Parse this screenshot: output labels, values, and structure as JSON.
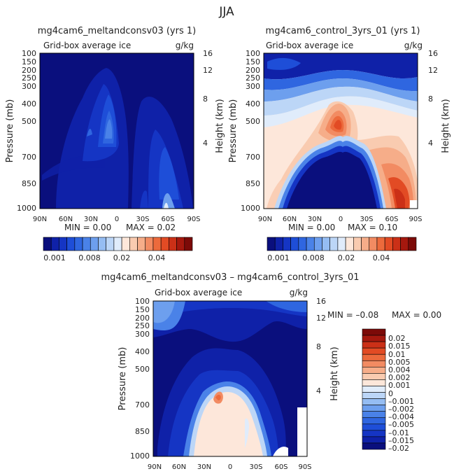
{
  "page_title": "JJA",
  "colors": {
    "blues": [
      "#0a0f7d",
      "#0f21a8",
      "#1535c4",
      "#1e4ed8",
      "#2f66e0",
      "#4a82e8",
      "#6d9fee",
      "#95bdf3",
      "#bcd6f7",
      "#e0ecfb"
    ],
    "reds": [
      "#fde7da",
      "#f9cbb0",
      "#f6ad89",
      "#f28b62",
      "#ec6a3c",
      "#e24b24",
      "#cb3017",
      "#a5180e",
      "#7c0a08"
    ]
  },
  "chart_data": [
    {
      "id": "panel_a",
      "type": "contour",
      "title": "mg4cam6_meltandconsv03 (yrs 1)",
      "left_label": "Grid-box average ice",
      "right_label": "g/kg",
      "ylabel": "Pressure (mb)",
      "ylabel_right": "Height (km)",
      "x_ticks": [
        "90N",
        "60N",
        "30N",
        "0",
        "30S",
        "60S",
        "90S"
      ],
      "y_ticks": [
        "100",
        "150",
        "200",
        "250",
        "300",
        "400",
        "500",
        "700",
        "850",
        "1000"
      ],
      "height_ticks": [
        "16",
        "12",
        "8",
        "4"
      ],
      "ylim": [
        1000,
        100
      ],
      "min_text": "MIN =    0.00",
      "max_text": "MAX =  0.02"
    },
    {
      "id": "panel_b",
      "type": "contour",
      "title": "mg4cam6_control_3yrs_01 (yrs 1)",
      "left_label": "Grid-box average ice",
      "right_label": "g/kg",
      "ylabel": "Pressure (mb)",
      "ylabel_right": "Height (km)",
      "x_ticks": [
        "90N",
        "60N",
        "30N",
        "0",
        "30S",
        "60S",
        "90S"
      ],
      "y_ticks": [
        "100",
        "150",
        "200",
        "250",
        "300",
        "400",
        "500",
        "700",
        "850",
        "1000"
      ],
      "height_ticks": [
        "16",
        "12",
        "8",
        "4"
      ],
      "ylim": [
        1000,
        100
      ],
      "min_text": "MIN =    0.00",
      "max_text": "MAX =  0.10"
    },
    {
      "id": "panel_c",
      "type": "contour",
      "title": "mg4cam6_meltandconsv03 – mg4cam6_control_3yrs_01",
      "left_label": "Grid-box average ice",
      "right_label": "g/kg",
      "ylabel": "Pressure (mb)",
      "ylabel_right": "Height (km)",
      "x_ticks": [
        "90N",
        "60N",
        "30N",
        "0",
        "30S",
        "60S",
        "90S"
      ],
      "y_ticks": [
        "100",
        "150",
        "200",
        "250",
        "300",
        "400",
        "500",
        "700",
        "850",
        "1000"
      ],
      "height_ticks": [
        "16",
        "12",
        "8",
        "4"
      ],
      "ylim": [
        1000,
        100
      ],
      "min_text": "MIN =    –0.08",
      "max_text": "MAX =    0.00"
    }
  ],
  "colorbar_shared": {
    "labels": [
      "0.001",
      "0.008",
      "0.02",
      "0.04"
    ]
  },
  "colorbar_diff": {
    "labels": [
      "0.02",
      "0.015",
      "0.01",
      "0.005",
      "0.004",
      "0.002",
      "0.001",
      "0",
      "–0.001",
      "–0.002",
      "–0.004",
      "–0.005",
      "–0.01",
      "–0.015",
      "–0.02"
    ]
  }
}
